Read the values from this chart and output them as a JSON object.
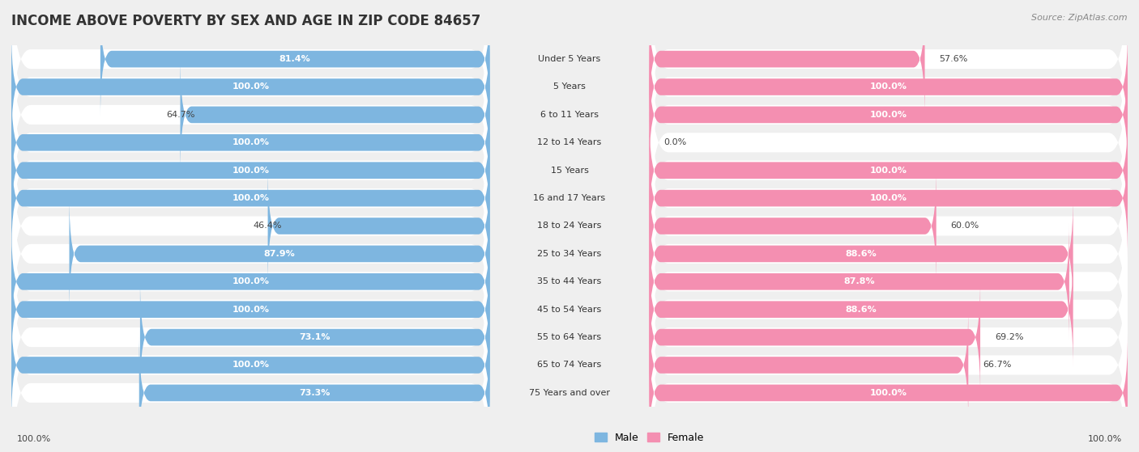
{
  "title": "INCOME ABOVE POVERTY BY SEX AND AGE IN ZIP CODE 84657",
  "source": "Source: ZipAtlas.com",
  "categories": [
    "Under 5 Years",
    "5 Years",
    "6 to 11 Years",
    "12 to 14 Years",
    "15 Years",
    "16 and 17 Years",
    "18 to 24 Years",
    "25 to 34 Years",
    "35 to 44 Years",
    "45 to 54 Years",
    "55 to 64 Years",
    "65 to 74 Years",
    "75 Years and over"
  ],
  "male_values": [
    81.4,
    100.0,
    64.7,
    100.0,
    100.0,
    100.0,
    46.4,
    87.9,
    100.0,
    100.0,
    73.1,
    100.0,
    73.3
  ],
  "female_values": [
    57.6,
    100.0,
    100.0,
    0.0,
    100.0,
    100.0,
    60.0,
    88.6,
    87.8,
    88.6,
    69.2,
    66.7,
    100.0
  ],
  "male_color": "#7eb6e0",
  "female_color": "#f48fb1",
  "bg_color": "#efefef",
  "row_bg_color": "#ffffff",
  "title_fontsize": 12,
  "label_fontsize": 8,
  "value_fontsize": 8,
  "legend_fontsize": 9,
  "source_fontsize": 8,
  "inside_threshold": 70
}
